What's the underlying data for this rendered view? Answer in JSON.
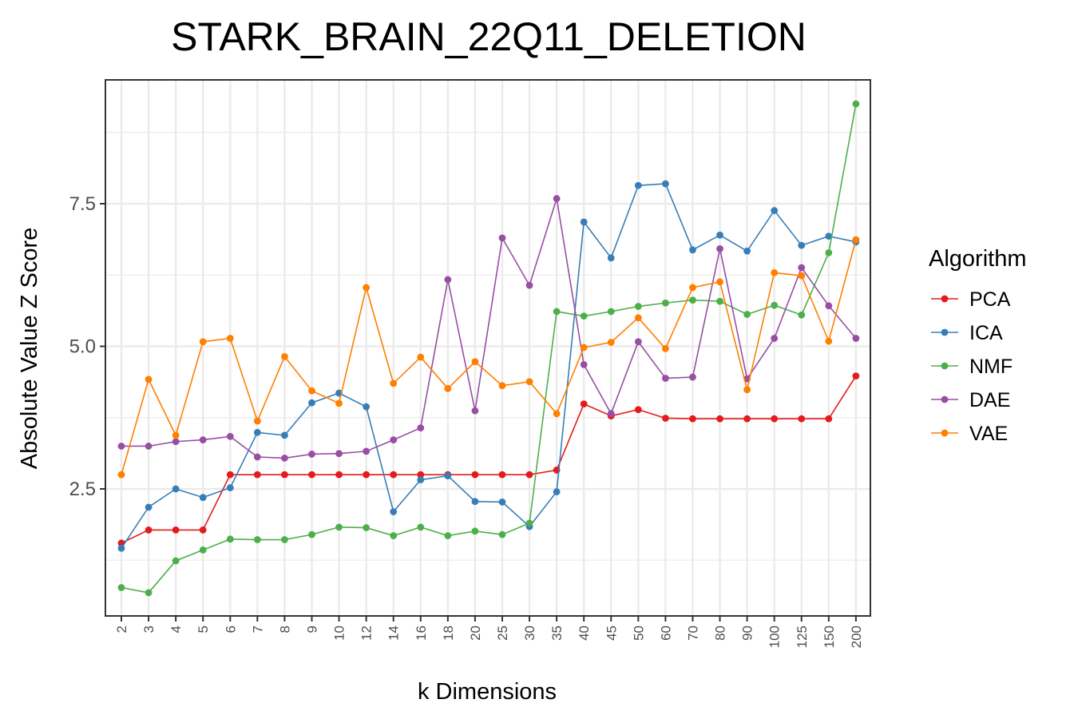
{
  "chart_data": {
    "type": "line",
    "title": "STARK_BRAIN_22Q11_DELETION",
    "xlabel": "k Dimensions",
    "ylabel": "Absolute Value Z Score",
    "categories": [
      "2",
      "3",
      "4",
      "5",
      "6",
      "7",
      "8",
      "9",
      "10",
      "12",
      "14",
      "16",
      "18",
      "20",
      "25",
      "30",
      "35",
      "40",
      "45",
      "50",
      "60",
      "70",
      "80",
      "90",
      "100",
      "125",
      "150",
      "200"
    ],
    "yticks": [
      "2.5",
      "5.0",
      "7.5"
    ],
    "ylim": [
      0.45,
      9.65
    ],
    "grid": true,
    "legend": {
      "title": "Algorithm",
      "position": "right"
    },
    "series": [
      {
        "name": "PCA",
        "color": "#e41a1c",
        "values": [
          1.55,
          1.78,
          1.78,
          1.78,
          2.75,
          2.75,
          2.75,
          2.75,
          2.75,
          2.75,
          2.75,
          2.75,
          2.75,
          2.75,
          2.75,
          2.75,
          2.83,
          3.99,
          3.78,
          3.89,
          3.74,
          3.73,
          3.73,
          3.73,
          3.73,
          3.73,
          3.73,
          4.48
        ]
      },
      {
        "name": "ICA",
        "color": "#377eb8",
        "values": [
          1.46,
          2.18,
          2.5,
          2.35,
          2.52,
          3.49,
          3.44,
          4.01,
          4.18,
          3.94,
          2.1,
          2.66,
          2.73,
          2.28,
          2.27,
          1.84,
          2.45,
          7.18,
          6.55,
          7.82,
          7.85,
          6.69,
          6.95,
          6.67,
          7.38,
          6.77,
          6.93,
          6.83
        ]
      },
      {
        "name": "NMF",
        "color": "#4daf4a",
        "values": [
          0.77,
          0.68,
          1.24,
          1.43,
          1.62,
          1.61,
          1.61,
          1.7,
          1.83,
          1.82,
          1.68,
          1.83,
          1.68,
          1.76,
          1.7,
          1.9,
          5.61,
          5.53,
          5.61,
          5.7,
          5.76,
          5.81,
          5.79,
          5.56,
          5.72,
          5.55,
          6.64,
          9.25
        ]
      },
      {
        "name": "DAE",
        "color": "#984ea3",
        "values": [
          3.25,
          3.25,
          3.33,
          3.36,
          3.42,
          3.06,
          3.04,
          3.11,
          3.12,
          3.16,
          3.36,
          3.57,
          6.17,
          3.87,
          6.9,
          6.07,
          7.59,
          4.68,
          3.82,
          5.08,
          4.44,
          4.46,
          6.71,
          4.43,
          5.14,
          6.38,
          5.71,
          5.14
        ]
      },
      {
        "name": "VAE",
        "color": "#ff7f00",
        "values": [
          2.75,
          4.42,
          3.44,
          5.08,
          5.14,
          3.69,
          4.82,
          4.22,
          4.0,
          6.03,
          4.35,
          4.81,
          4.26,
          4.73,
          4.31,
          4.38,
          3.82,
          4.98,
          5.07,
          5.5,
          4.96,
          6.03,
          6.13,
          4.24,
          6.29,
          6.24,
          5.09,
          6.87
        ]
      }
    ]
  }
}
